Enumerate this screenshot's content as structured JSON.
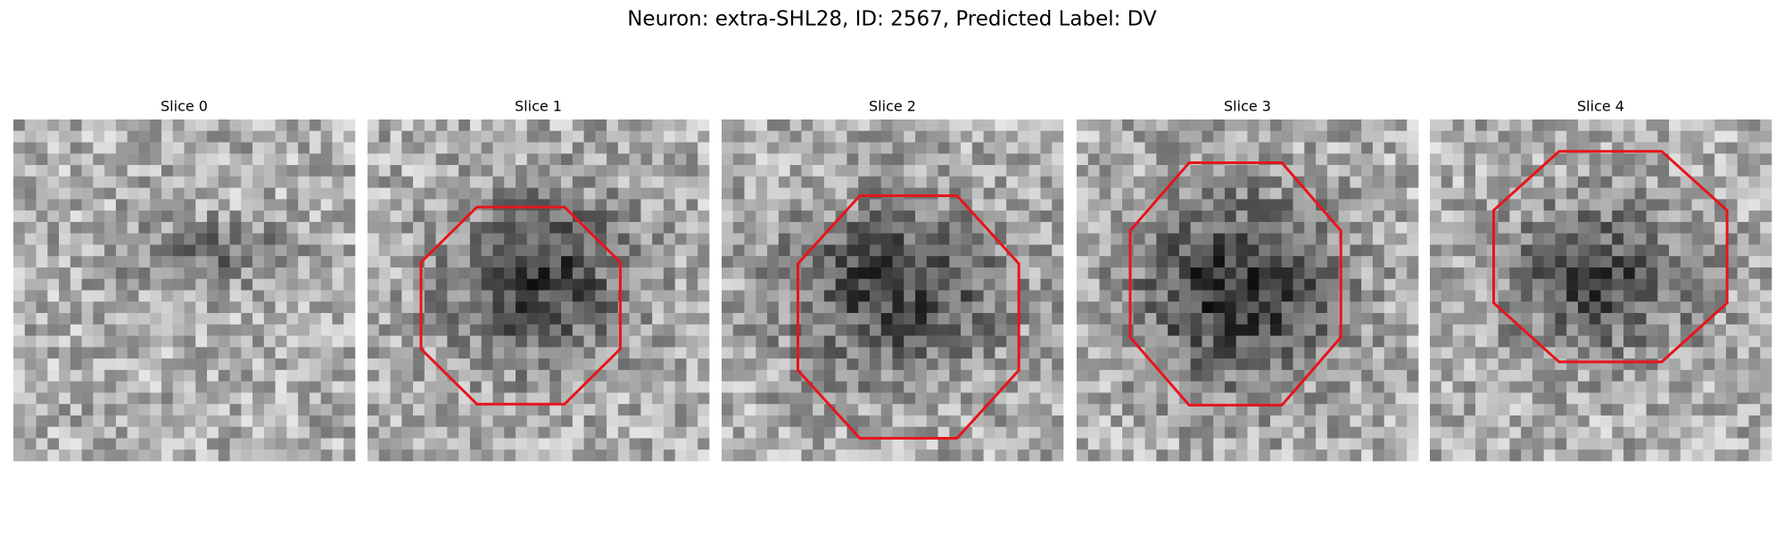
{
  "header": {
    "title": "Neuron: extra-SHL28, ID: 2567, Predicted Label: DV"
  },
  "panels": [
    {
      "title": "Slice 0"
    },
    {
      "title": "Slice 1"
    },
    {
      "title": "Slice 2"
    },
    {
      "title": "Slice 3"
    },
    {
      "title": "Slice 4"
    }
  ]
}
